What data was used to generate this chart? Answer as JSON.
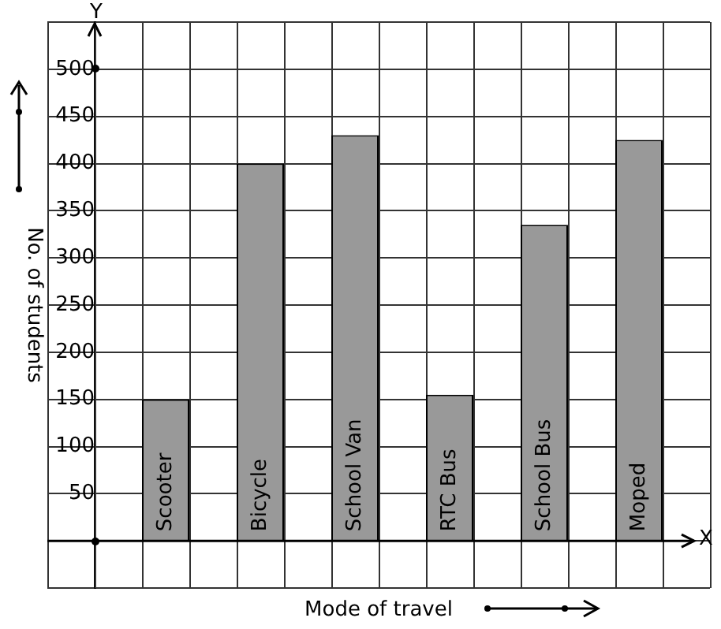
{
  "chart_data": {
    "type": "bar",
    "xlabel": "Mode of travel",
    "ylabel": "No. of students",
    "categories": [
      "Scooter",
      "Bicycle",
      "School Van",
      "RTC Bus",
      "School Bus",
      "Moped"
    ],
    "values": [
      150,
      400,
      430,
      155,
      335,
      425
    ],
    "color": "#999999",
    "ylim": [
      -50,
      550
    ],
    "yticks": [
      {
        "value": -50,
        "label": null
      },
      {
        "value": 0,
        "label": null
      },
      50,
      100,
      150,
      200,
      250,
      300,
      350,
      400,
      450,
      500,
      {
        "value": 550,
        "label": null
      }
    ],
    "annotations": [
      "Y",
      "X"
    ],
    "grid": true,
    "legend": false
  }
}
